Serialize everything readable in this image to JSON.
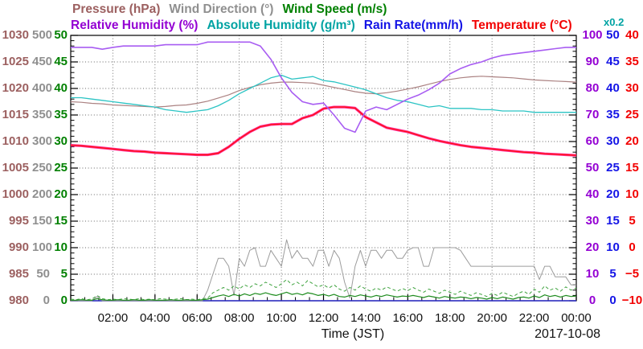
{
  "legend": {
    "row1": [
      {
        "id": "pressure",
        "label": "Pressure (hPa)",
        "color": "#9c6060"
      },
      {
        "id": "wind-direction",
        "label": "Wind Direction (°)",
        "color": "#8f8f8f"
      },
      {
        "id": "wind-speed",
        "label": "Wind Speed (m/s)",
        "color": "#008000"
      }
    ],
    "row2": [
      {
        "id": "relative-humidity",
        "label": "Relative Humidity (%)",
        "color": "#9400d3"
      },
      {
        "id": "absolute-humidity",
        "label": "Absolute Humidity (g/m³)",
        "color": "#00a3a3"
      },
      {
        "id": "rain-rate",
        "label": "Rain Rate(mm/h)",
        "color": "#1414e6"
      },
      {
        "id": "temperature",
        "label": "Temperature (°C)",
        "color": "#f20000"
      }
    ],
    "scale_note": {
      "label": "x0.2",
      "color": "#00a3a3"
    }
  },
  "x_axis": {
    "title": "Time (JST)",
    "date": "2017-10-08",
    "tick_labels": [
      "02:00",
      "04:00",
      "06:00",
      "08:00",
      "10:00",
      "12:00",
      "14:00",
      "16:00",
      "18:00",
      "20:00",
      "22:00",
      "00:00"
    ]
  },
  "axes": [
    {
      "name": "pressure",
      "color": "#9c6060",
      "labels": [
        "1030",
        "1025",
        "1020",
        "1015",
        "1010",
        "1005",
        "1000",
        "995",
        "990",
        "985",
        "980"
      ]
    },
    {
      "name": "wind_direction",
      "color": "#8f8f8f",
      "labels": [
        "500",
        "450",
        "400",
        "350",
        "300",
        "250",
        "200",
        "150",
        "100",
        "50",
        "0"
      ]
    },
    {
      "name": "wind_speed",
      "color": "#008000",
      "labels": [
        "50",
        "45",
        "40",
        "35",
        "30",
        "25",
        "20",
        "15",
        "10",
        "5",
        "0"
      ]
    },
    {
      "name": "relative_humidity",
      "color": "#9400d3",
      "labels": [
        "100",
        "90",
        "80",
        "70",
        "60",
        "50",
        "40",
        "30",
        "20",
        "10",
        "0"
      ]
    },
    {
      "name": "rain_rate",
      "color": "#1414e6",
      "labels": [
        "50",
        "45",
        "40",
        "35",
        "30",
        "25",
        "20",
        "15",
        "10",
        "5",
        "0"
      ]
    },
    {
      "name": "temperature",
      "color": "#f20000",
      "labels": [
        "40",
        "35",
        "30",
        "25",
        "20",
        "15",
        "10",
        "5",
        "0",
        "−5",
        "−10"
      ]
    }
  ],
  "chart_data": {
    "type": "line",
    "x_label": "Time (JST)",
    "date": "2017-10-08",
    "x_range_hours": [
      0,
      24
    ],
    "x_tick_interval_hours": 2,
    "grid": true,
    "legend_position": "top",
    "absolute_humidity_scale_factor": 0.2,
    "series": [
      {
        "name": "rain_rate",
        "unit": "mm/h",
        "color": "#2e2ecc",
        "width": 1.4,
        "axis_range": [
          0,
          50
        ],
        "t0": 0,
        "dt": 24,
        "values": [
          0,
          0
        ]
      },
      {
        "name": "wind_direction",
        "unit": "°",
        "color": "#9c9c9c",
        "width": 1,
        "axis_range": [
          0,
          500
        ],
        "t0": 0,
        "dt": 0.25,
        "values": [
          0,
          0,
          0,
          0,
          0,
          8,
          0,
          0,
          0,
          0,
          0,
          0,
          0,
          0,
          0,
          0,
          0,
          0,
          0,
          0,
          0,
          0,
          0,
          0,
          0,
          0,
          20,
          50,
          80,
          80,
          65,
          10,
          80,
          65,
          95,
          100,
          65,
          65,
          95,
          80,
          65,
          115,
          80,
          95,
          80,
          80,
          65,
          95,
          95,
          65,
          95,
          80,
          35,
          5,
          65,
          95,
          65,
          95,
          95,
          80,
          95,
          95,
          80,
          80,
          95,
          100,
          100,
          65,
          65,
          100,
          100,
          100,
          100,
          100,
          95,
          80,
          65,
          65,
          65,
          65,
          65,
          65,
          65,
          65,
          65,
          65,
          65,
          65,
          65,
          40,
          65,
          65,
          45,
          45,
          45,
          30,
          30
        ]
      },
      {
        "name": "wind_speed_gust",
        "unit": "m/s",
        "color": "#3fa33f",
        "width": 1,
        "dash": "4,3",
        "axis_range": [
          0,
          50
        ],
        "t0": 0,
        "dt": 0.25,
        "values": [
          0.3,
          0.2,
          0.4,
          0.2,
          0.3,
          1.0,
          0.4,
          0.2,
          0.3,
          0.2,
          0.4,
          0.3,
          0.2,
          0.4,
          0.2,
          0.3,
          0.2,
          0.4,
          0.3,
          0.2,
          0.3,
          0.4,
          0.2,
          0.3,
          0.2,
          0.4,
          0.5,
          1.5,
          2.0,
          2.5,
          2.0,
          2.8,
          2.2,
          3.0,
          2.5,
          3.2,
          2.8,
          3.5,
          3.0,
          2.5,
          3.2,
          4.0,
          3.0,
          3.5,
          2.8,
          3.8,
          3.2,
          2.6,
          3.0,
          2.4,
          3.0,
          2.2,
          1.8,
          2.5,
          2.0,
          2.8,
          2.2,
          1.8,
          2.4,
          2.0,
          2.6,
          2.2,
          1.8,
          2.3,
          1.9,
          2.5,
          2.0,
          1.6,
          2.2,
          1.8,
          1.4,
          2.0,
          1.6,
          1.2,
          1.8,
          1.4,
          1.0,
          1.5,
          1.2,
          0.8,
          1.4,
          1.0,
          1.6,
          1.2,
          0.8,
          1.4,
          1.8,
          1.2,
          2.2,
          1.6,
          2.8,
          2.0,
          2.4,
          1.8,
          2.6,
          2.0,
          2.4
        ]
      },
      {
        "name": "wind_speed",
        "unit": "m/s",
        "color": "#1e8c1e",
        "width": 1.2,
        "axis_range": [
          0,
          50
        ],
        "t0": 0,
        "dt": 0.25,
        "values": [
          0.1,
          0.1,
          0.2,
          0.1,
          0.1,
          0.4,
          0.2,
          0.1,
          0.1,
          0.2,
          0.1,
          0.1,
          0.2,
          0.1,
          0.1,
          0.2,
          0.1,
          0.1,
          0.1,
          0.2,
          0.1,
          0.1,
          0.2,
          0.1,
          0.1,
          0.2,
          0.3,
          0.6,
          0.9,
          1.1,
          0.8,
          1.2,
          0.9,
          1.3,
          1.0,
          1.4,
          1.2,
          1.5,
          1.2,
          1.0,
          1.3,
          1.6,
          1.2,
          1.4,
          1.1,
          1.5,
          1.3,
          1.0,
          1.2,
          0.9,
          1.2,
          0.8,
          0.7,
          1.0,
          0.8,
          1.1,
          0.9,
          0.7,
          1.0,
          0.8,
          1.1,
          0.9,
          0.7,
          0.9,
          0.8,
          1.0,
          0.8,
          0.6,
          0.9,
          0.7,
          0.5,
          0.8,
          0.6,
          0.5,
          0.7,
          0.6,
          0.4,
          0.6,
          0.5,
          0.3,
          0.6,
          0.4,
          0.7,
          0.5,
          0.3,
          0.6,
          0.7,
          0.5,
          0.9,
          0.6,
          1.1,
          0.8,
          1.0,
          0.7,
          1.0,
          0.8,
          0.9
        ]
      },
      {
        "name": "pressure",
        "unit": "hPa",
        "color": "#ab8282",
        "width": 1.2,
        "axis_range": [
          980,
          1030
        ],
        "t0": 0,
        "dt": 0.5,
        "values": [
          1017.5,
          1017.4,
          1017.2,
          1017.1,
          1016.9,
          1016.8,
          1016.7,
          1016.6,
          1016.5,
          1016.6,
          1016.8,
          1016.9,
          1017.2,
          1017.6,
          1018.2,
          1018.8,
          1019.6,
          1020.2,
          1020.7,
          1021.0,
          1021.2,
          1021.2,
          1021.1,
          1021.0,
          1020.6,
          1020.2,
          1019.8,
          1019.4,
          1019.1,
          1019.0,
          1019.2,
          1019.5,
          1019.9,
          1020.3,
          1020.8,
          1021.3,
          1021.7,
          1022.0,
          1022.2,
          1022.3,
          1022.2,
          1022.1,
          1022.0,
          1021.8,
          1021.6,
          1021.5,
          1021.4,
          1021.3,
          1021.2
        ]
      },
      {
        "name": "absolute_humidity",
        "unit": "g/m³",
        "color": "#2cc4c4",
        "width": 1.3,
        "axis_range": [
          0,
          20
        ],
        "t0": 0,
        "dt": 0.5,
        "values": [
          15.3,
          15.3,
          15.2,
          15.1,
          15.0,
          14.9,
          14.8,
          14.7,
          14.6,
          14.4,
          14.3,
          14.2,
          14.3,
          14.4,
          14.7,
          15.1,
          15.6,
          16.0,
          16.4,
          16.8,
          17.0,
          16.7,
          16.8,
          16.9,
          16.6,
          16.5,
          16.3,
          16.1,
          15.9,
          15.6,
          15.3,
          15.1,
          15.0,
          14.8,
          14.6,
          14.7,
          14.5,
          14.5,
          14.5,
          14.4,
          14.4,
          14.3,
          14.3,
          14.3,
          14.2,
          14.2,
          14.2,
          14.2,
          14.2
        ]
      },
      {
        "name": "temperature",
        "unit": "°C",
        "color": "#ff1111",
        "shadow_color": "#ff2fa0",
        "width": 1.4,
        "axis_range": [
          -10,
          40
        ],
        "t0": 0,
        "dt": 0.5,
        "values": [
          19.3,
          19.2,
          19.0,
          18.8,
          18.6,
          18.4,
          18.2,
          18.1,
          17.9,
          17.8,
          17.7,
          17.6,
          17.5,
          17.5,
          17.8,
          19.0,
          20.5,
          21.8,
          22.8,
          23.2,
          23.3,
          23.3,
          24.4,
          25.0,
          26.2,
          26.5,
          26.5,
          26.3,
          24.6,
          23.6,
          22.6,
          22.2,
          21.8,
          21.2,
          20.6,
          20.1,
          19.7,
          19.3,
          19.0,
          18.8,
          18.6,
          18.4,
          18.2,
          18.0,
          17.9,
          17.7,
          17.6,
          17.5,
          17.4
        ]
      },
      {
        "name": "relative_humidity",
        "unit": "%",
        "color": "#a85df2",
        "width": 1.6,
        "axis_range": [
          0,
          100
        ],
        "t0": 0,
        "dt": 0.5,
        "values": [
          95.5,
          95.5,
          95.5,
          94.8,
          95.5,
          96.0,
          96.0,
          96.0,
          96.0,
          96.5,
          96.5,
          96.5,
          96.5,
          97.5,
          97.5,
          97.5,
          97.5,
          97.5,
          96.0,
          91.0,
          84.0,
          78.5,
          75.0,
          74.0,
          74.5,
          70.0,
          65.0,
          63.5,
          71.5,
          73.0,
          72.0,
          74.0,
          76.0,
          77.5,
          79.5,
          82.0,
          85.5,
          87.5,
          89.0,
          90.0,
          91.5,
          92.5,
          93.0,
          93.5,
          94.0,
          94.5,
          95.0,
          95.5,
          95.5
        ]
      }
    ]
  }
}
